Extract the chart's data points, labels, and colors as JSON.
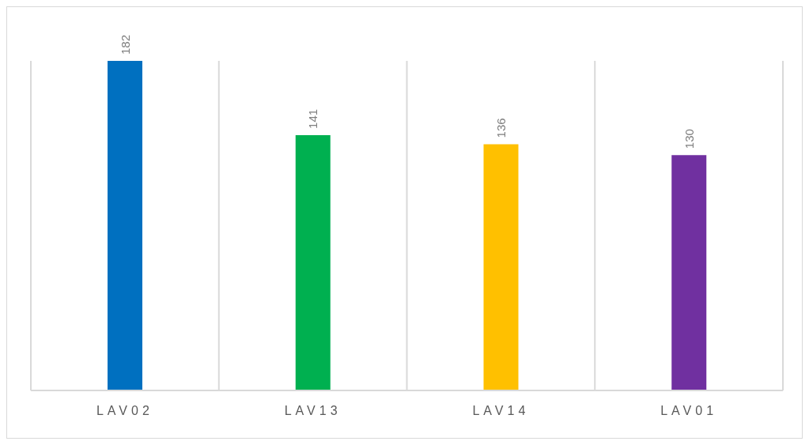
{
  "chart_data": {
    "type": "bar",
    "categories": [
      "LAV02",
      "LAV13",
      "LAV14",
      "LAV01"
    ],
    "values": [
      182,
      141,
      136,
      130
    ],
    "colors": [
      "#0070c0",
      "#00b050",
      "#ffc000",
      "#7030a0"
    ],
    "data_labels": true,
    "grid": "x"
  }
}
